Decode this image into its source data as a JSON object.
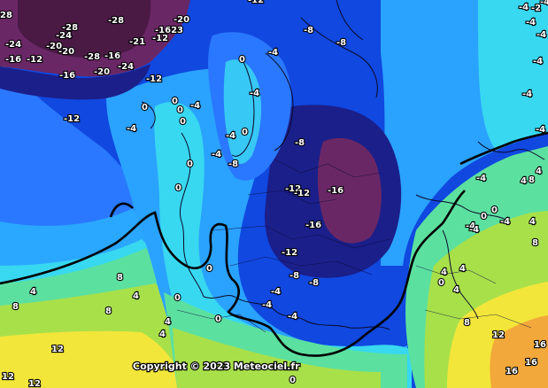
{
  "copyright": "Copyright © 2023 Meteociel.fr",
  "zero_isotherm_color": "#000000",
  "temperature_palette": {
    "-24": "#5a1f52",
    "-20": "#7a2a72",
    "-16": "#1b1f8a",
    "-12": "#0a2fd6",
    "-8": "#1e63ff",
    "-4": "#2aa2ff",
    "0": "#38d8f0",
    "4": "#5ce0a0",
    "8": "#a8e04a",
    "12": "#f2e63a",
    "16": "#f2a83a"
  },
  "labels": [
    {
      "name": "label-28-topleft",
      "text": "28"
    },
    {
      "name": "label-neg24-a",
      "text": "-24"
    },
    {
      "name": "label-neg16-a",
      "text": "-16"
    },
    {
      "name": "label-neg12-a",
      "text": "-12"
    },
    {
      "name": "label-neg28-a",
      "text": "-28"
    },
    {
      "name": "label-neg24-b",
      "text": "-24"
    },
    {
      "name": "label-neg20-a",
      "text": "-20"
    },
    {
      "name": "label-neg20-b",
      "text": "-20"
    },
    {
      "name": "label-neg28-b",
      "text": "-28"
    },
    {
      "name": "label-neg28-c",
      "text": "-28"
    },
    {
      "name": "label-neg16-b",
      "text": "-16"
    },
    {
      "name": "label-neg20-c",
      "text": "-20"
    },
    {
      "name": "label-neg24-c",
      "text": "-24"
    },
    {
      "name": "label-neg21",
      "text": "-21"
    },
    {
      "name": "label-neg1623",
      "text": "-1623"
    },
    {
      "name": "label-neg12-b",
      "text": "-12"
    },
    {
      "name": "label-neg20-d",
      "text": "-20"
    },
    {
      "name": "label-neg16-c",
      "text": "-16"
    },
    {
      "name": "label-neg12-c",
      "text": "-12"
    },
    {
      "name": "label-neg12-d",
      "text": "-12"
    },
    {
      "name": "label-neg4-a",
      "text": "-4"
    },
    {
      "name": "label-0-a",
      "text": "0"
    },
    {
      "name": "label-0-b",
      "text": "0"
    },
    {
      "name": "label-0-c",
      "text": "0"
    },
    {
      "name": "label-0-d",
      "text": "0"
    },
    {
      "name": "label-neg4-b",
      "text": "-4"
    },
    {
      "name": "label-0-e",
      "text": "0"
    },
    {
      "name": "label-0-f",
      "text": "0"
    },
    {
      "name": "label-neg4-c",
      "text": "-4"
    },
    {
      "name": "label-neg4-d",
      "text": "-4"
    },
    {
      "name": "label-neg4-e",
      "text": "-4"
    },
    {
      "name": "label-0-g",
      "text": "0"
    },
    {
      "name": "label-neg4-f",
      "text": "-4"
    },
    {
      "name": "label-neg8-a",
      "text": "-8"
    },
    {
      "name": "label-neg8-b",
      "text": "-8"
    },
    {
      "name": "label-neg8-c",
      "text": "-8"
    },
    {
      "name": "label-neg12-e",
      "text": "-12"
    },
    {
      "name": "label-neg8-d",
      "text": "-8"
    },
    {
      "name": "label-neg12-f",
      "text": "-12"
    },
    {
      "name": "label-neg16-d",
      "text": "-16"
    },
    {
      "name": "label-neg16-e",
      "text": "-16"
    },
    {
      "name": "label-neg12-g",
      "text": "-12"
    },
    {
      "name": "label-neg8-e",
      "text": "-8"
    },
    {
      "name": "label-neg8-f",
      "text": "-8"
    },
    {
      "name": "label-neg4-g",
      "text": "-4"
    },
    {
      "name": "label-neg4-h",
      "text": "-4"
    },
    {
      "name": "label-neg4-i",
      "text": "-4"
    },
    {
      "name": "label-neg12-top",
      "text": "-12"
    },
    {
      "name": "label-0-h",
      "text": "0"
    },
    {
      "name": "label-0-i",
      "text": "0"
    },
    {
      "name": "label-0-j",
      "text": "0"
    },
    {
      "name": "label-0-k",
      "text": "0"
    },
    {
      "name": "label-0-l",
      "text": "0"
    },
    {
      "name": "label-4-a",
      "text": "4"
    },
    {
      "name": "label-8-a",
      "text": "8"
    },
    {
      "name": "label-8-b",
      "text": "8"
    },
    {
      "name": "label-4-b",
      "text": "4"
    },
    {
      "name": "label-4-c",
      "text": "4"
    },
    {
      "name": "label-4-d",
      "text": "4"
    },
    {
      "name": "label-8-c",
      "text": "8"
    },
    {
      "name": "label-12-a",
      "text": "12"
    },
    {
      "name": "label-12-b",
      "text": "12"
    },
    {
      "name": "label-12-c",
      "text": "12"
    },
    {
      "name": "label-neg4-r1",
      "text": "-4"
    },
    {
      "name": "label-neg2-r",
      "text": "-2"
    },
    {
      "name": "label-neg4-r2",
      "text": "-4"
    },
    {
      "name": "label-neg4-r3",
      "text": "-4"
    },
    {
      "name": "label-neg4-r4",
      "text": "-4"
    },
    {
      "name": "label-neg4-r5",
      "text": "-4"
    },
    {
      "name": "label-4-r1",
      "text": "4"
    },
    {
      "name": "label-8-r1",
      "text": "8"
    },
    {
      "name": "label-4-r2",
      "text": "4"
    },
    {
      "name": "label-neg4-r6",
      "text": "-4"
    },
    {
      "name": "label-0-r1",
      "text": "0"
    },
    {
      "name": "label-neg4-r7",
      "text": "-4"
    },
    {
      "name": "label-neg4-r8",
      "text": "-4"
    },
    {
      "name": "label-4-r3",
      "text": "4"
    },
    {
      "name": "label-8-r2",
      "text": "8"
    },
    {
      "name": "label-4-r4",
      "text": "4"
    },
    {
      "name": "label-4-r5",
      "text": "4"
    },
    {
      "name": "label-4-r6",
      "text": "4"
    },
    {
      "name": "label-8-r3",
      "text": "8"
    },
    {
      "name": "label-12-r1",
      "text": "12"
    },
    {
      "name": "label-16-r1",
      "text": "16"
    },
    {
      "name": "label-16-r2",
      "text": "16"
    },
    {
      "name": "label-16-r3",
      "text": "16"
    },
    {
      "name": "label-neg4-s",
      "text": "-4"
    },
    {
      "name": "label-neg4-t",
      "text": "-4"
    },
    {
      "name": "label-0-s",
      "text": "0"
    },
    {
      "name": "label-0-t",
      "text": "0"
    },
    {
      "name": "label-neg4-u",
      "text": "-4"
    }
  ]
}
